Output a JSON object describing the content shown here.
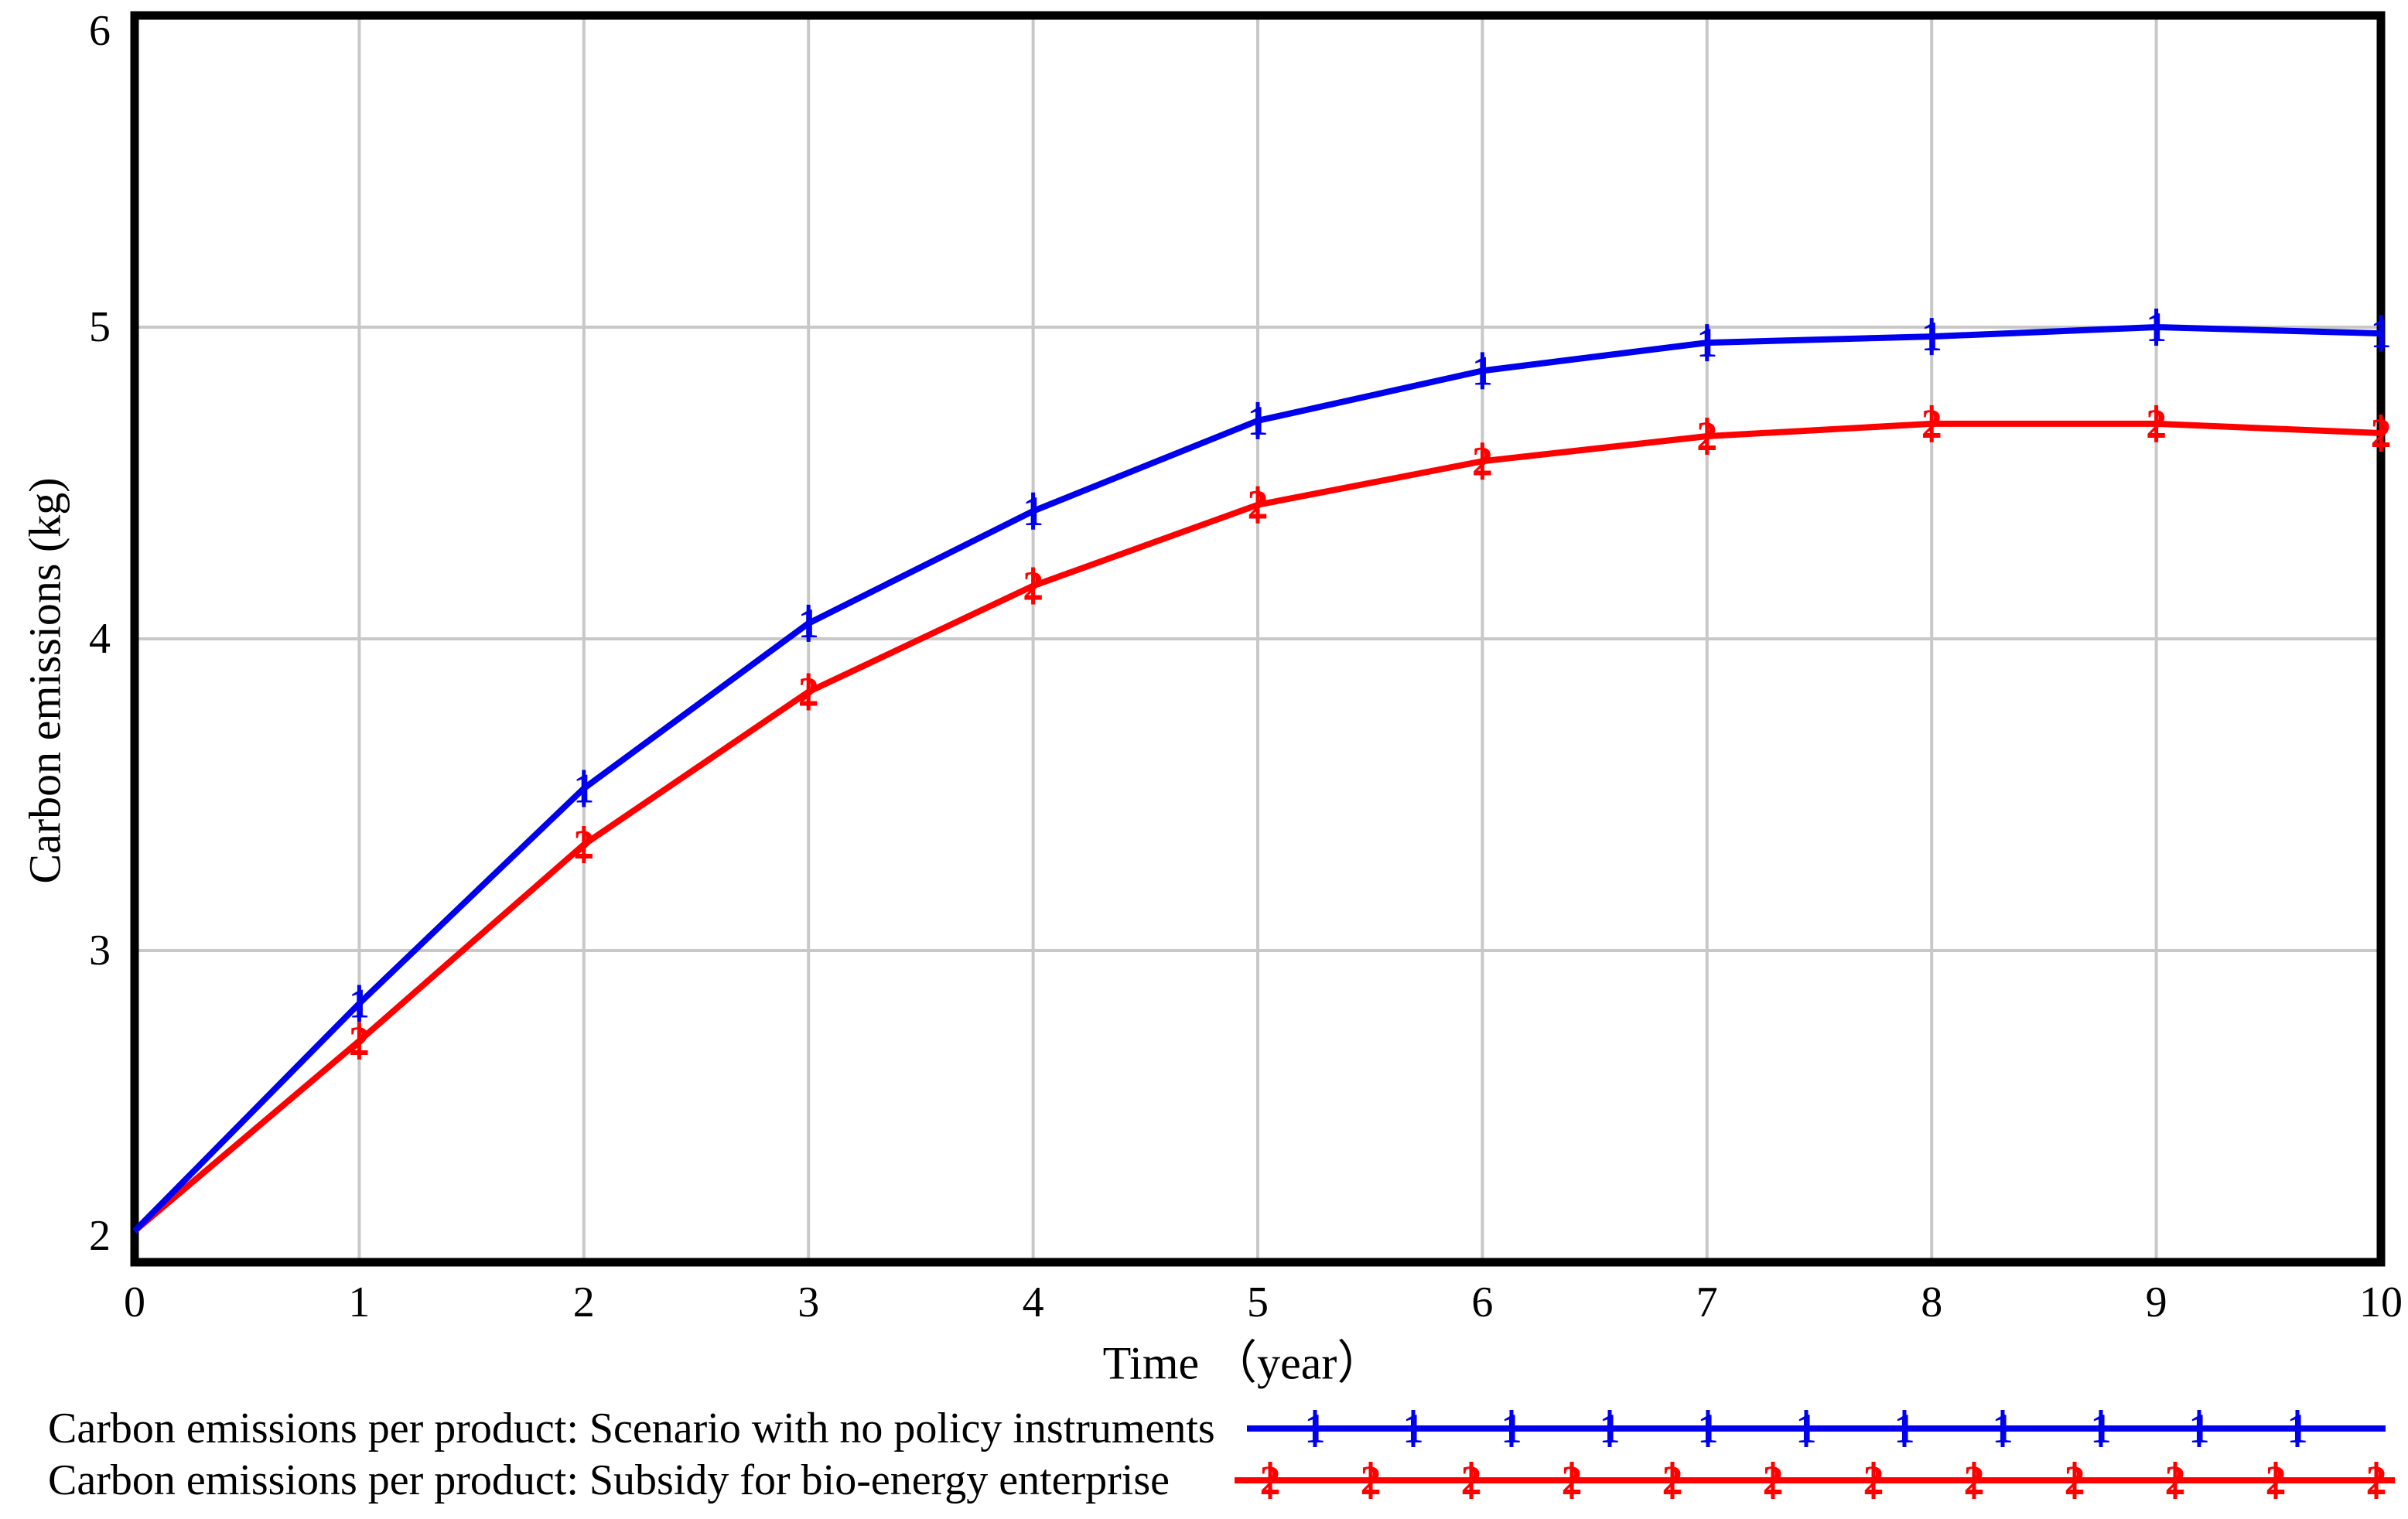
{
  "chart_data": {
    "type": "line",
    "title": "",
    "xlabel": "Time （year）",
    "ylabel": "Carbon emissions (kg)",
    "xlim": [
      0,
      10
    ],
    "ylim": [
      2,
      6
    ],
    "x_ticks": [
      0,
      1,
      2,
      3,
      4,
      5,
      6,
      7,
      8,
      9,
      10
    ],
    "y_ticks": [
      2,
      3,
      4,
      5,
      6
    ],
    "grid": true,
    "grid_color": "#c8c8c8",
    "axis_color": "#000000",
    "legend_position": "bottom-left",
    "x": [
      0,
      1,
      2,
      3,
      4,
      5,
      6,
      7,
      8,
      9,
      10
    ],
    "series": [
      {
        "name": "Carbon emissions per product: Scenario with no policy instruments",
        "marker_digit": "1",
        "color": "#0000ee",
        "legend_marker_count": 11,
        "values": [
          2.1,
          2.83,
          3.52,
          4.05,
          4.41,
          4.7,
          4.86,
          4.95,
          4.97,
          5.0,
          4.98
        ]
      },
      {
        "name": "Carbon emissions per product: Subsidy for bio-energy enterprise",
        "marker_digit": "2",
        "color": "#ff0000",
        "legend_marker_count": 12,
        "values": [
          2.1,
          2.71,
          3.34,
          3.83,
          4.17,
          4.43,
          4.57,
          4.65,
          4.69,
          4.69,
          4.66
        ]
      }
    ]
  }
}
